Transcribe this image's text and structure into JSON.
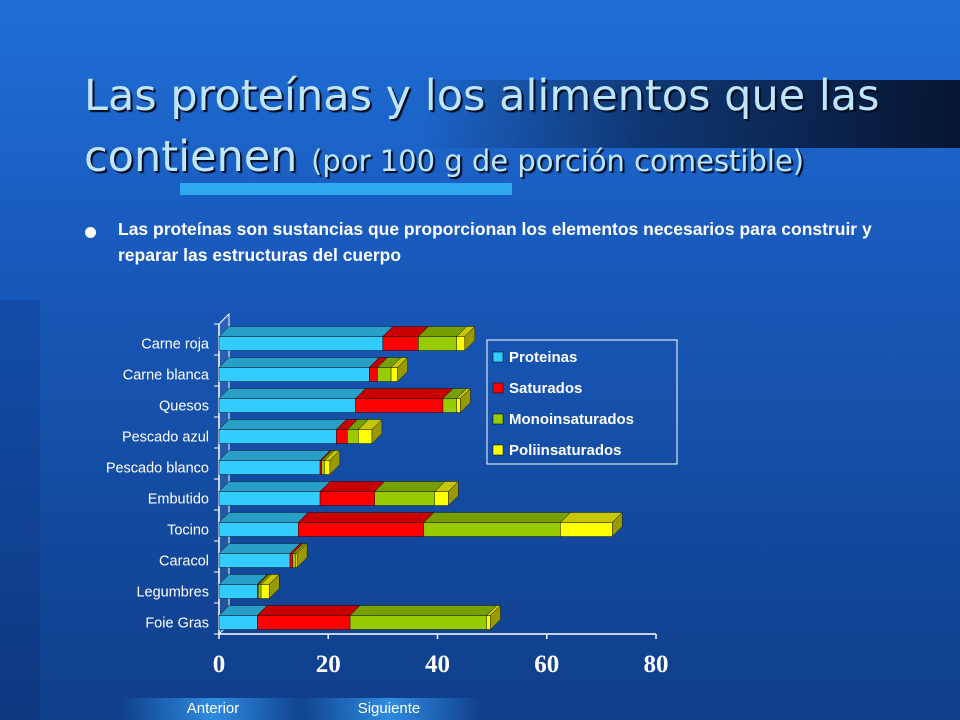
{
  "slide": {
    "title_main": "Las proteínas y los alimentos que las contienen",
    "title_sub": "(por 100 g de porción comestible)",
    "bullet": "Las proteínas son sustancias que proporcionan los elementos necesarios para construir y reparar las estructuras del cuerpo"
  },
  "nav": {
    "prev_label": "Anterior",
    "next_label": "Siguiente"
  },
  "chart_data": {
    "type": "bar",
    "orientation": "horizontal",
    "stacked": true,
    "three_d": true,
    "categories": [
      "Carne roja",
      "Carne blanca",
      "Quesos",
      "Pescado azul",
      "Pescado blanco",
      "Embutido",
      "Tocino",
      "Caracol",
      "Legumbres",
      "Foie Gras"
    ],
    "series": [
      {
        "name": "Proteinas",
        "color": "#33ccff",
        "values": [
          30,
          27.5,
          25,
          21.5,
          18.5,
          18.5,
          14.5,
          13,
          7,
          7
        ]
      },
      {
        "name": "Saturados",
        "color": "#ff0000",
        "values": [
          6.5,
          1.5,
          16,
          2,
          0.3,
          10,
          23,
          0.5,
          0.2,
          17
        ]
      },
      {
        "name": "Monoinsaturados",
        "color": "#99cc00",
        "values": [
          7,
          2.5,
          2.5,
          2,
          0.5,
          11,
          25,
          0.5,
          0.5,
          25
        ]
      },
      {
        "name": "Poliinsaturados",
        "color": "#ffff00",
        "values": [
          1.5,
          1.2,
          0.7,
          2.5,
          1,
          2.5,
          9.5,
          0.3,
          1.5,
          0.7
        ]
      }
    ],
    "xlim": [
      0,
      80
    ],
    "xticks": [
      0,
      20,
      40,
      60,
      80
    ],
    "legend_position": "top-right"
  }
}
